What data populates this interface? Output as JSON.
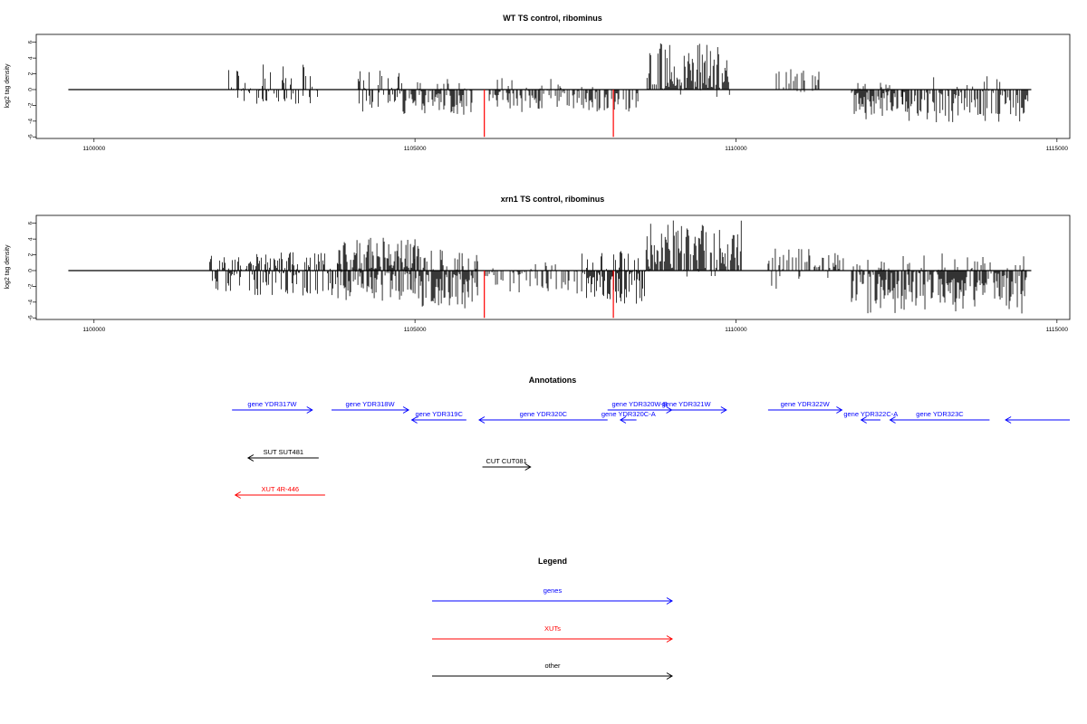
{
  "colors": {
    "gene": "#0000ff",
    "xut": "#ff0000",
    "other": "#000000",
    "highlight": "#ff0000",
    "bars": "#000000"
  },
  "chart_data": [
    {
      "type": "bar",
      "title": "WT TS control, ribominus",
      "ylabel": "log2 tag density",
      "xlim": [
        1099100,
        1115200
      ],
      "ylim": [
        -6.2,
        7
      ],
      "xticks": [
        1100000,
        1105000,
        1110000,
        1115000
      ],
      "yticks": [
        -6,
        -4,
        -2,
        0,
        2,
        4,
        6
      ],
      "baseline": {
        "x": [
          1099600,
          1114600
        ],
        "y": 0
      },
      "highlights": [
        {
          "x": 1106080,
          "y": -6
        },
        {
          "x": 1108090,
          "y": -6
        }
      ],
      "regions": [
        {
          "x": [
            1102100,
            1103500
          ],
          "pos_density": 0.3,
          "neg_density": 0.25,
          "pos_max": 3.2,
          "neg_max": 1.8
        },
        {
          "x": [
            1104100,
            1104800
          ],
          "pos_density": 0.4,
          "neg_density": 0.6,
          "pos_max": 2.6,
          "neg_max": 3.0
        },
        {
          "x": [
            1104800,
            1105900
          ],
          "pos_density": 0.15,
          "neg_density": 0.9,
          "pos_max": 1.8,
          "neg_max": 3.4
        },
        {
          "x": [
            1106100,
            1107300
          ],
          "pos_density": 0.15,
          "neg_density": 0.6,
          "pos_max": 1.5,
          "neg_max": 3.2
        },
        {
          "x": [
            1107300,
            1108500
          ],
          "pos_density": 0.05,
          "neg_density": 0.7,
          "pos_max": 1.0,
          "neg_max": 2.8
        },
        {
          "x": [
            1108600,
            1109900
          ],
          "pos_density": 1.0,
          "neg_density": 0.05,
          "pos_max": 6.0,
          "neg_max": 1.0
        },
        {
          "x": [
            1110600,
            1111300
          ],
          "pos_density": 0.35,
          "neg_density": 0.05,
          "pos_max": 3.0,
          "neg_max": 0.5
        },
        {
          "x": [
            1111800,
            1112600
          ],
          "pos_density": 0.1,
          "neg_density": 1.0,
          "pos_max": 1.0,
          "neg_max": 3.8
        },
        {
          "x": [
            1112600,
            1114550
          ],
          "pos_density": 0.1,
          "neg_density": 0.75,
          "pos_max": 2.0,
          "neg_max": 4.2
        }
      ]
    },
    {
      "type": "bar",
      "title": "xrn1 TS control, ribominus",
      "ylabel": "log2 tag density",
      "xlim": [
        1099100,
        1115200
      ],
      "ylim": [
        -6.2,
        7
      ],
      "xticks": [
        1100000,
        1105000,
        1110000,
        1115000
      ],
      "yticks": [
        -6,
        -4,
        -2,
        0,
        2,
        4,
        6
      ],
      "baseline": {
        "x": [
          1099600,
          1114600
        ],
        "y": 0
      },
      "highlights": [
        {
          "x": 1106080,
          "y": -6
        },
        {
          "x": 1108090,
          "y": -6
        }
      ],
      "regions": [
        {
          "x": [
            1101800,
            1103800
          ],
          "pos_density": 0.6,
          "neg_density": 0.6,
          "pos_max": 2.5,
          "neg_max": 3.2
        },
        {
          "x": [
            1103800,
            1105000
          ],
          "pos_density": 1.0,
          "neg_density": 0.8,
          "pos_max": 4.2,
          "neg_max": 4.0
        },
        {
          "x": [
            1105000,
            1106000
          ],
          "pos_density": 0.4,
          "neg_density": 1.0,
          "pos_max": 3.2,
          "neg_max": 5.0
        },
        {
          "x": [
            1106100,
            1107600
          ],
          "pos_density": 0.15,
          "neg_density": 0.5,
          "pos_max": 1.2,
          "neg_max": 3.0
        },
        {
          "x": [
            1107600,
            1108600
          ],
          "pos_density": 0.3,
          "neg_density": 1.0,
          "pos_max": 2.8,
          "neg_max": 4.2
        },
        {
          "x": [
            1108600,
            1110100
          ],
          "pos_density": 1.0,
          "neg_density": 0.05,
          "pos_max": 6.5,
          "neg_max": 0.8
        },
        {
          "x": [
            1110500,
            1111700
          ],
          "pos_density": 0.5,
          "neg_density": 0.1,
          "pos_max": 2.8,
          "neg_max": 2.5
        },
        {
          "x": [
            1111800,
            1114550
          ],
          "pos_density": 0.3,
          "neg_density": 1.0,
          "pos_max": 2.2,
          "neg_max": 5.5
        }
      ]
    }
  ],
  "annotations": {
    "title": "Annotations",
    "features": [
      {
        "label": "gene YDR317W",
        "cls": "gene",
        "strand": "+",
        "start": 1102150,
        "end": 1103400,
        "row": 0
      },
      {
        "label": "gene YDR318W",
        "cls": "gene",
        "strand": "+",
        "start": 1103700,
        "end": 1104900,
        "row": 0
      },
      {
        "label": "gene YDR319C",
        "cls": "gene",
        "strand": "-",
        "start": 1104950,
        "end": 1105800,
        "row": 1
      },
      {
        "label": "gene YDR320C",
        "cls": "gene",
        "strand": "-",
        "start": 1106000,
        "end": 1108000,
        "row": 1
      },
      {
        "label": "gene YDR320W-B",
        "cls": "gene",
        "strand": "+",
        "start": 1108000,
        "end": 1109000,
        "row": 0
      },
      {
        "label": "gene YDR320C-A",
        "cls": "gene",
        "strand": "-",
        "start": 1108200,
        "end": 1108450,
        "row": 1
      },
      {
        "label": "gene YDR321W",
        "cls": "gene",
        "strand": "+",
        "start": 1108600,
        "end": 1109850,
        "row": 0
      },
      {
        "label": "gene YDR322W",
        "cls": "gene",
        "strand": "+",
        "start": 1110500,
        "end": 1111650,
        "row": 0
      },
      {
        "label": "gene YDR322C-A",
        "cls": "gene",
        "strand": "-",
        "start": 1111950,
        "end": 1112250,
        "row": 1
      },
      {
        "label": "gene YDR323C",
        "cls": "gene",
        "strand": "-",
        "start": 1112400,
        "end": 1113950,
        "row": 1
      },
      {
        "label": "",
        "cls": "gene",
        "strand": "-",
        "start": 1114200,
        "end": 1115200,
        "row": 1
      },
      {
        "label": "SUT SUT481",
        "cls": "other",
        "strand": "-",
        "start": 1102400,
        "end": 1103500,
        "row": 2
      },
      {
        "label": "CUT CUT081",
        "cls": "other",
        "strand": "+",
        "start": 1106050,
        "end": 1106800,
        "row": 3
      },
      {
        "label": "XUT 4R-446",
        "cls": "xut",
        "strand": "-",
        "start": 1102200,
        "end": 1103600,
        "row": 4
      }
    ]
  },
  "legend": {
    "title": "Legend",
    "items": [
      {
        "label": "genes",
        "cls": "gene"
      },
      {
        "label": "XUTs",
        "cls": "xut"
      },
      {
        "label": "other",
        "cls": "other"
      }
    ]
  }
}
